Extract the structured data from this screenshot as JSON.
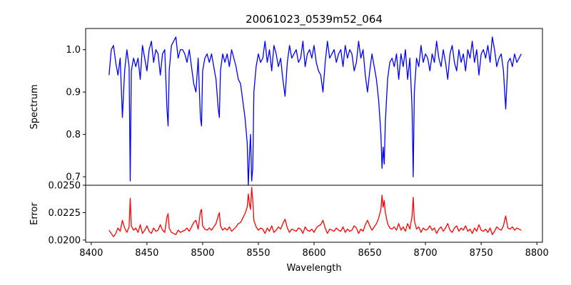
{
  "chart_data": [
    {
      "type": "line",
      "title": "20061023_0539m52_064",
      "xlabel": "",
      "ylabel": "Spectrum",
      "xlim": [
        8395,
        8805
      ],
      "ylim": [
        0.68,
        1.05
      ],
      "yticks": [
        "0.7",
        "0.8",
        "0.9",
        "1.0"
      ],
      "grid": false,
      "series": [
        {
          "color": "#0000ff",
          "x": [
            8416,
            8418,
            8420,
            8422,
            8424,
            8426,
            8428,
            8430,
            8432,
            8434,
            8435,
            8436,
            8438,
            8440,
            8442,
            8444,
            8446,
            8448,
            8450,
            8452,
            8454,
            8456,
            8458,
            8460,
            8462,
            8464,
            8466,
            8468,
            8469,
            8470,
            8472,
            8474,
            8476,
            8478,
            8480,
            8482,
            8484,
            8486,
            8488,
            8490,
            8492,
            8494,
            8496,
            8498,
            8499,
            8500,
            8502,
            8504,
            8506,
            8508,
            8510,
            8512,
            8514,
            8515,
            8516,
            8518,
            8520,
            8522,
            8524,
            8526,
            8528,
            8530,
            8532,
            8534,
            8536,
            8538,
            8540,
            8541,
            8542,
            8543,
            8544,
            8545,
            8546,
            8548,
            8550,
            8552,
            8554,
            8556,
            8558,
            8560,
            8562,
            8564,
            8566,
            8568,
            8570,
            8572,
            8574,
            8576,
            8578,
            8580,
            8582,
            8584,
            8586,
            8588,
            8590,
            8592,
            8594,
            8596,
            8598,
            8600,
            8602,
            8604,
            8606,
            8608,
            8610,
            8612,
            8614,
            8616,
            8618,
            8620,
            8622,
            8624,
            8626,
            8628,
            8630,
            8632,
            8634,
            8636,
            8638,
            8640,
            8642,
            8644,
            8646,
            8648,
            8650,
            8652,
            8654,
            8656,
            8658,
            8660,
            8661,
            8662,
            8663,
            8664,
            8666,
            8668,
            8670,
            8672,
            8674,
            8676,
            8678,
            8680,
            8682,
            8684,
            8686,
            8688,
            8689,
            8690,
            8692,
            8694,
            8696,
            8698,
            8700,
            8702,
            8704,
            8706,
            8708,
            8710,
            8712,
            8714,
            8716,
            8718,
            8720,
            8722,
            8724,
            8726,
            8728,
            8730,
            8732,
            8734,
            8736,
            8738,
            8740,
            8742,
            8744,
            8746,
            8748,
            8750,
            8752,
            8754,
            8756,
            8758,
            8760,
            8762,
            8764,
            8766,
            8768,
            8770,
            8772,
            8774,
            8776,
            8778,
            8780,
            8782,
            8784,
            8786
          ],
          "values": [
            0.94,
            1.0,
            1.01,
            0.97,
            0.94,
            0.98,
            0.84,
            0.95,
            1.0,
            0.96,
            0.69,
            0.95,
            0.98,
            0.96,
            0.98,
            0.93,
            1.01,
            0.98,
            0.95,
            1.0,
            1.02,
            0.97,
            1.0,
            0.99,
            0.94,
            0.99,
            1.0,
            0.86,
            0.82,
            0.95,
            1.01,
            1.02,
            1.03,
            0.98,
            1.0,
            1.0,
            0.99,
            0.97,
            1.0,
            0.96,
            0.92,
            0.9,
            0.98,
            0.84,
            0.82,
            0.95,
            0.98,
            0.99,
            0.97,
            0.99,
            0.96,
            0.93,
            0.86,
            0.84,
            0.95,
            0.99,
            0.97,
            0.99,
            0.96,
            1.0,
            0.98,
            0.96,
            0.93,
            0.92,
            0.88,
            0.84,
            0.78,
            0.68,
            0.75,
            0.8,
            0.69,
            0.72,
            0.9,
            0.96,
            0.99,
            0.97,
            0.98,
            1.02,
            0.97,
            1.0,
            0.95,
            1.01,
            0.99,
            0.96,
            0.98,
            0.93,
            0.89,
            0.97,
            1.01,
            0.98,
            0.99,
            1.0,
            0.97,
            0.98,
            1.02,
            0.96,
            0.99,
            1.0,
            0.98,
            1.01,
            0.97,
            0.95,
            0.94,
            0.9,
            0.97,
            1.02,
            0.98,
            0.99,
            1.0,
            0.97,
            0.99,
            1.0,
            0.96,
            1.01,
            0.98,
            1.0,
            0.99,
            0.95,
            0.97,
            1.02,
            0.98,
            1.0,
            0.94,
            0.9,
            0.95,
            0.99,
            0.96,
            0.93,
            0.88,
            0.8,
            0.72,
            0.77,
            0.73,
            0.83,
            0.93,
            0.97,
            0.98,
            0.96,
            0.99,
            0.93,
            0.99,
            0.96,
            1.0,
            0.93,
            0.98,
            0.86,
            0.7,
            0.9,
            0.98,
            0.96,
            1.01,
            0.97,
            0.99,
            0.98,
            0.95,
            0.99,
            0.97,
            1.02,
            0.98,
            0.96,
            1.0,
            0.97,
            0.93,
            0.99,
            1.01,
            0.97,
            0.95,
            1.0,
            0.97,
            0.99,
            0.95,
            1.0,
            0.98,
            1.02,
            0.97,
            1.0,
            0.94,
            0.99,
            1.0,
            0.98,
            1.01,
            0.97,
            1.03,
            1.0,
            0.96,
            0.98,
            0.99,
            0.95,
            0.86,
            0.97,
            0.98,
            0.96,
            0.99,
            0.97,
            0.98,
            0.99
          ]
        }
      ]
    },
    {
      "type": "line",
      "title": "",
      "xlabel": "Wavelength",
      "ylabel": "Error",
      "xlim": [
        8395,
        8805
      ],
      "ylim": [
        0.0198,
        0.025
      ],
      "xticks": [
        "8400",
        "8450",
        "8500",
        "8550",
        "8600",
        "8650",
        "8700",
        "8750",
        "8800"
      ],
      "yticks": [
        "0.0200",
        "0.0225",
        "0.0250"
      ],
      "grid": false,
      "series": [
        {
          "color": "#ff0000",
          "x": [
            8416,
            8418,
            8420,
            8422,
            8424,
            8426,
            8428,
            8430,
            8432,
            8434,
            8435,
            8436,
            8438,
            8440,
            8442,
            8444,
            8446,
            8448,
            8450,
            8452,
            8454,
            8456,
            8458,
            8460,
            8462,
            8464,
            8466,
            8468,
            8469,
            8470,
            8472,
            8474,
            8476,
            8478,
            8480,
            8482,
            8484,
            8486,
            8488,
            8490,
            8492,
            8494,
            8496,
            8498,
            8499,
            8500,
            8502,
            8504,
            8506,
            8508,
            8510,
            8512,
            8514,
            8515,
            8516,
            8518,
            8520,
            8522,
            8524,
            8526,
            8528,
            8530,
            8532,
            8534,
            8536,
            8538,
            8540,
            8541,
            8542,
            8543,
            8544,
            8545,
            8546,
            8548,
            8550,
            8552,
            8554,
            8556,
            8558,
            8560,
            8562,
            8564,
            8566,
            8568,
            8570,
            8572,
            8574,
            8576,
            8578,
            8580,
            8582,
            8584,
            8586,
            8588,
            8590,
            8592,
            8594,
            8596,
            8598,
            8600,
            8602,
            8604,
            8606,
            8608,
            8610,
            8612,
            8614,
            8616,
            8618,
            8620,
            8622,
            8624,
            8626,
            8628,
            8630,
            8632,
            8634,
            8636,
            8638,
            8640,
            8642,
            8644,
            8646,
            8648,
            8650,
            8652,
            8654,
            8656,
            8658,
            8660,
            8661,
            8662,
            8663,
            8664,
            8666,
            8668,
            8670,
            8672,
            8674,
            8676,
            8678,
            8680,
            8682,
            8684,
            8686,
            8688,
            8689,
            8690,
            8692,
            8694,
            8696,
            8698,
            8700,
            8702,
            8704,
            8706,
            8708,
            8710,
            8712,
            8714,
            8716,
            8718,
            8720,
            8722,
            8724,
            8726,
            8728,
            8730,
            8732,
            8734,
            8736,
            8738,
            8740,
            8742,
            8744,
            8746,
            8748,
            8750,
            8752,
            8754,
            8756,
            8758,
            8760,
            8762,
            8764,
            8766,
            8768,
            8770,
            8772,
            8774,
            8776,
            8778,
            8780,
            8782,
            8784,
            8786
          ],
          "values": [
            0.0209,
            0.0206,
            0.0203,
            0.0206,
            0.0211,
            0.0208,
            0.0218,
            0.0211,
            0.0207,
            0.0212,
            0.0238,
            0.0213,
            0.0209,
            0.0211,
            0.0207,
            0.0214,
            0.0206,
            0.0209,
            0.0213,
            0.0208,
            0.0206,
            0.0211,
            0.0208,
            0.0209,
            0.0214,
            0.0209,
            0.0207,
            0.0221,
            0.0224,
            0.0211,
            0.0207,
            0.0206,
            0.0205,
            0.0209,
            0.0207,
            0.0208,
            0.0209,
            0.0211,
            0.0208,
            0.0212,
            0.0216,
            0.0218,
            0.021,
            0.0226,
            0.0228,
            0.0213,
            0.021,
            0.0209,
            0.0211,
            0.0209,
            0.0212,
            0.0215,
            0.0222,
            0.0225,
            0.0213,
            0.0209,
            0.0211,
            0.0209,
            0.0212,
            0.0208,
            0.021,
            0.0212,
            0.0215,
            0.0216,
            0.022,
            0.0224,
            0.023,
            0.0242,
            0.0233,
            0.0228,
            0.0248,
            0.0236,
            0.0218,
            0.0212,
            0.0209,
            0.0211,
            0.021,
            0.0206,
            0.0211,
            0.0208,
            0.0213,
            0.0207,
            0.0209,
            0.0212,
            0.021,
            0.0215,
            0.0219,
            0.0211,
            0.0207,
            0.021,
            0.0209,
            0.0208,
            0.0211,
            0.021,
            0.0206,
            0.0212,
            0.0209,
            0.0208,
            0.021,
            0.0207,
            0.0211,
            0.0213,
            0.0214,
            0.0218,
            0.0211,
            0.0206,
            0.021,
            0.0209,
            0.0208,
            0.0211,
            0.0209,
            0.0208,
            0.0212,
            0.0207,
            0.021,
            0.0208,
            0.0209,
            0.0213,
            0.0211,
            0.0206,
            0.021,
            0.0208,
            0.0214,
            0.0218,
            0.0213,
            0.0209,
            0.0212,
            0.0215,
            0.022,
            0.0228,
            0.0241,
            0.023,
            0.0236,
            0.0225,
            0.0215,
            0.0211,
            0.021,
            0.0212,
            0.0209,
            0.0215,
            0.0209,
            0.0212,
            0.0208,
            0.0215,
            0.021,
            0.0222,
            0.0239,
            0.0218,
            0.021,
            0.0212,
            0.0207,
            0.0211,
            0.0209,
            0.021,
            0.0213,
            0.0209,
            0.0211,
            0.0206,
            0.021,
            0.0212,
            0.0208,
            0.0211,
            0.0215,
            0.0209,
            0.0207,
            0.0211,
            0.0213,
            0.0208,
            0.0211,
            0.0209,
            0.0213,
            0.0208,
            0.021,
            0.0206,
            0.0211,
            0.0208,
            0.0214,
            0.0209,
            0.0208,
            0.021,
            0.0207,
            0.0211,
            0.0205,
            0.0208,
            0.0212,
            0.021,
            0.0209,
            0.0213,
            0.0222,
            0.0211,
            0.021,
            0.0212,
            0.0209,
            0.0211,
            0.021,
            0.0209
          ]
        }
      ]
    }
  ]
}
